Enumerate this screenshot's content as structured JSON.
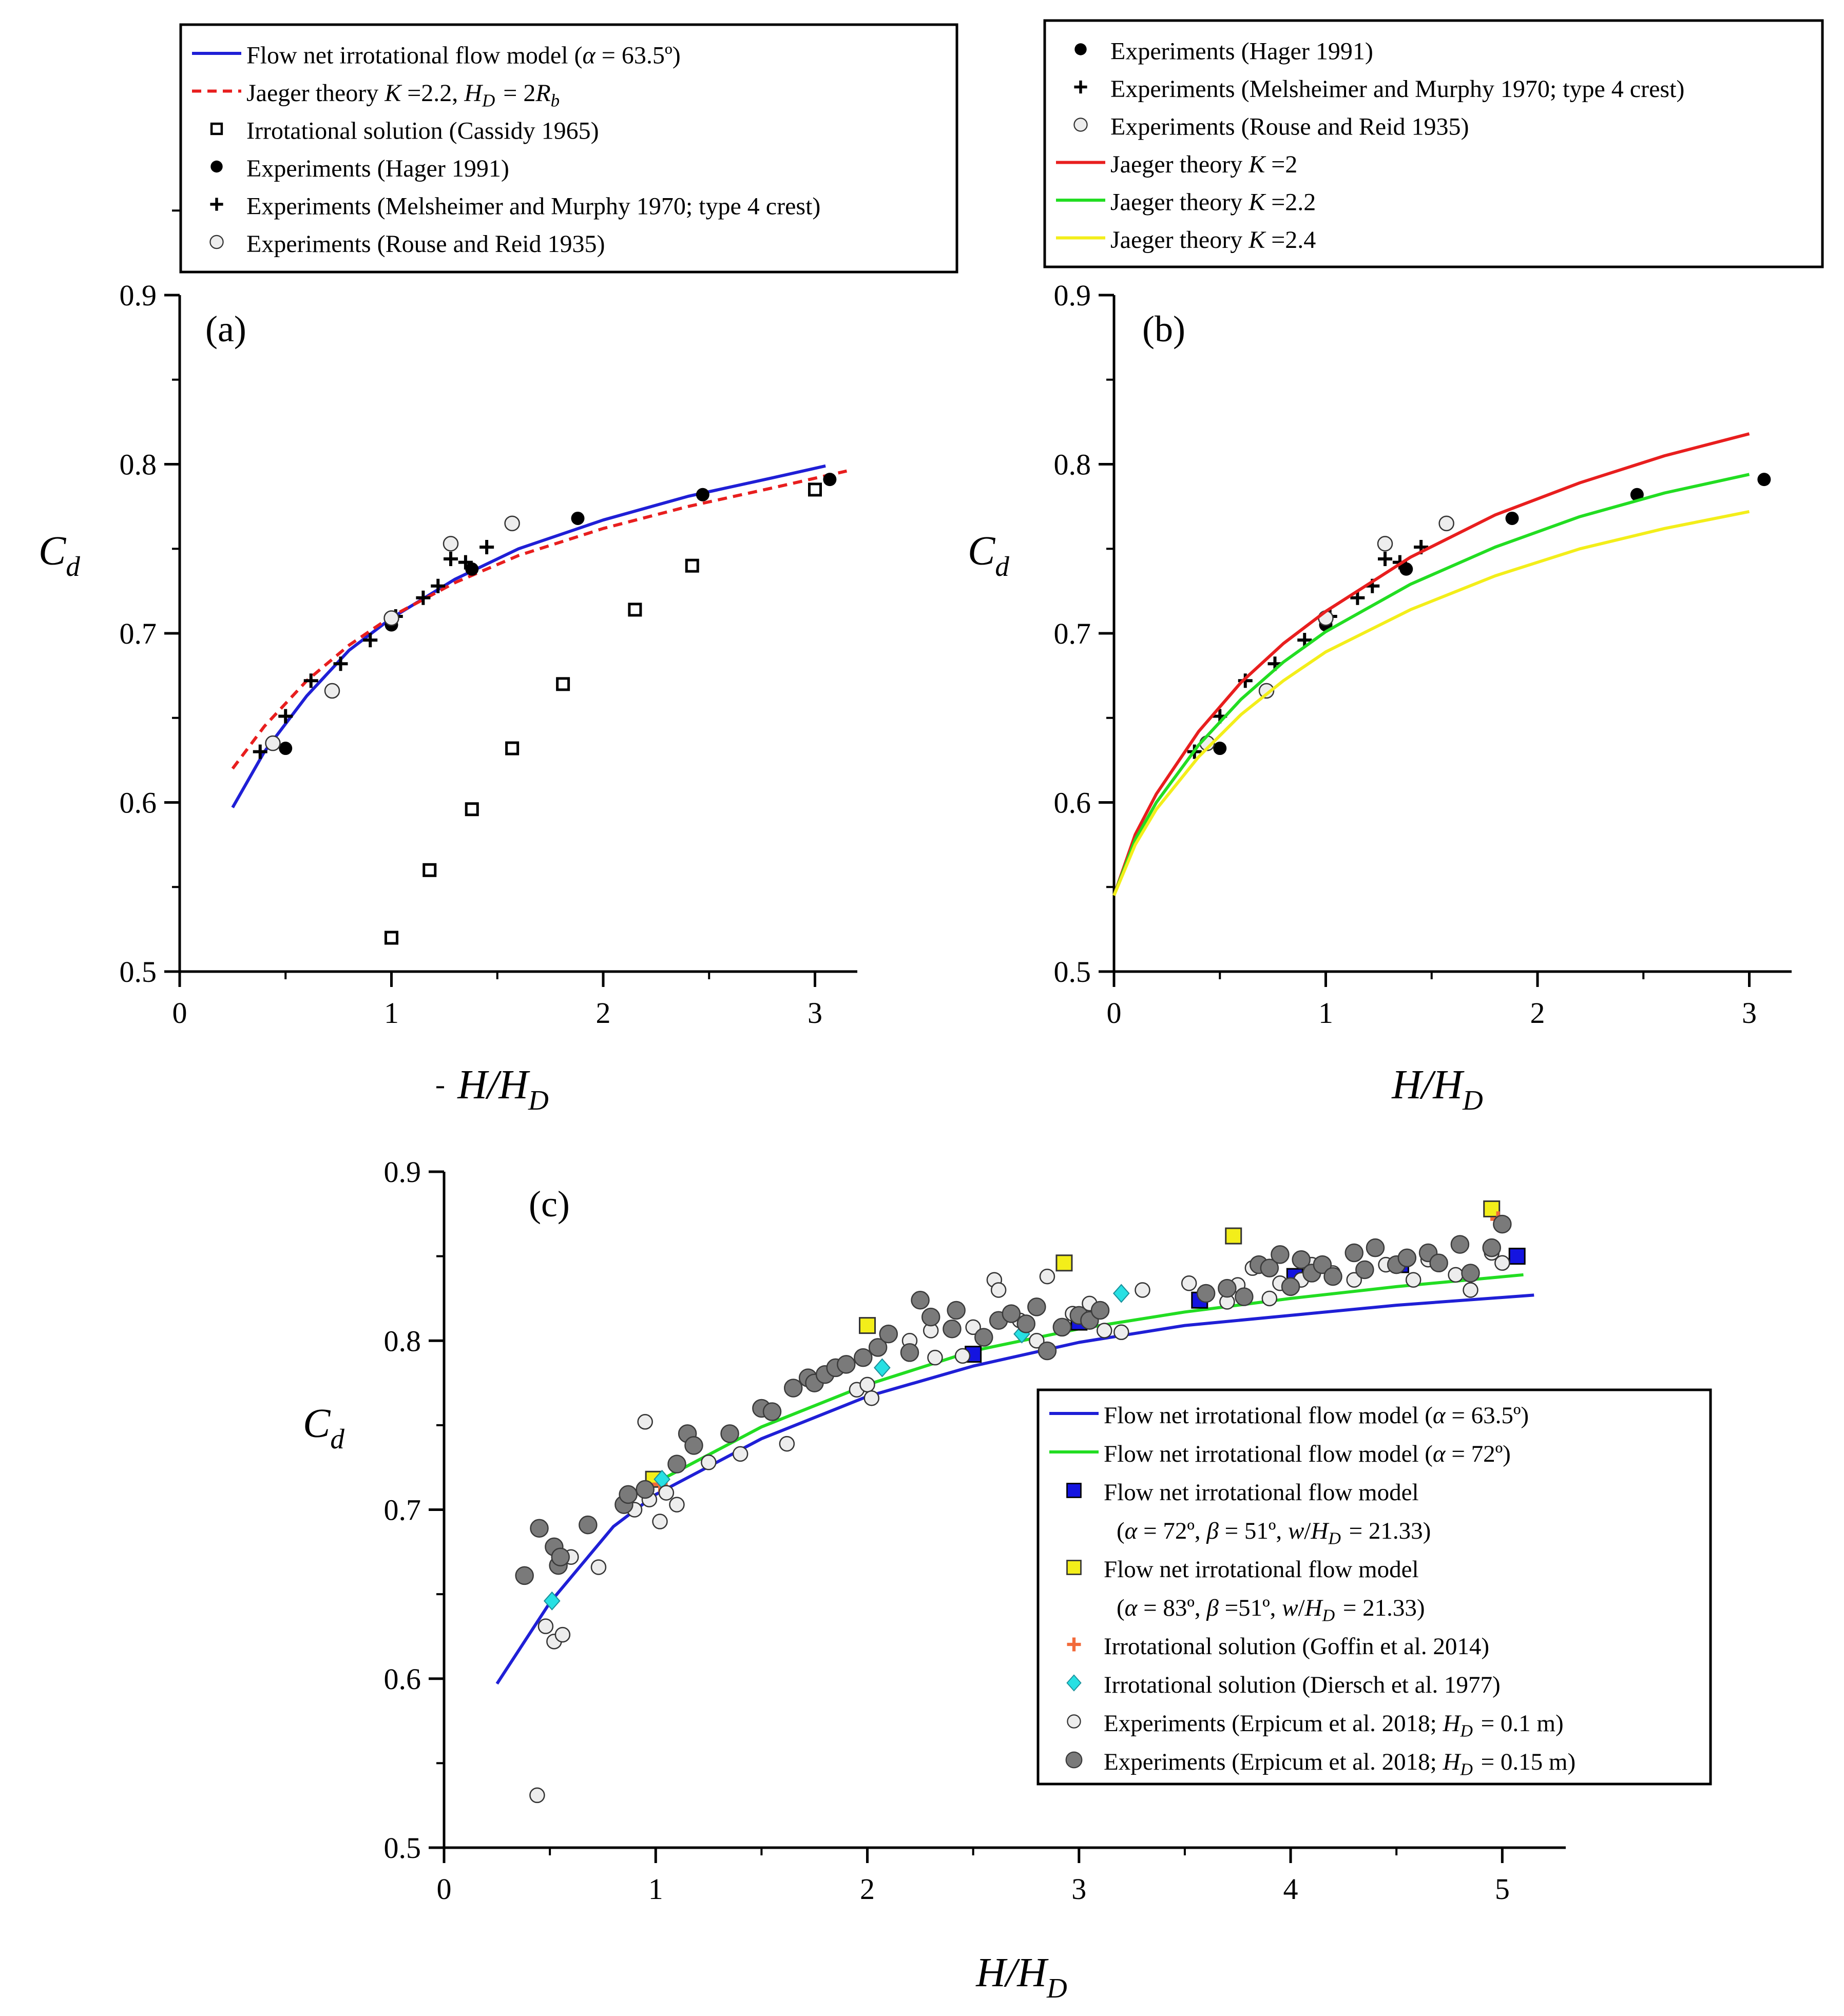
{
  "chart_data": [
    {
      "panel": "a",
      "type": "scatter",
      "panel_label": "(a)",
      "xlabel": "H/H_D",
      "ylabel": "C_d",
      "xlim": [
        0,
        3.2
      ],
      "ylim": [
        0.5,
        0.9
      ],
      "xticks": [
        "0",
        "1",
        "2",
        "3"
      ],
      "yticks": [
        "0.5",
        "0.6",
        "0.7",
        "0.8",
        "0.9"
      ],
      "legend_position": "top",
      "legend": [
        "Flow net irrotational flow model (α = 63.5º)",
        "Jaeger theory K =2.2, H_D = 2R_b",
        "Irrotational solution (Cassidy 1965)",
        "Experiments (Hager 1991)",
        "Experiments (Melsheimer and Murphy 1970; type 4 crest)",
        "Experiments (Rouse and Reid 1935)"
      ],
      "series": [
        {
          "name": "Flow net irrotational flow model (α = 63.5º)",
          "kind": "curve",
          "color": "#1f1fd6",
          "x": [
            0.25,
            0.4,
            0.6,
            0.8,
            1.0,
            1.3,
            1.6,
            2.0,
            2.4,
            2.8,
            3.05
          ],
          "y": [
            0.597,
            0.63,
            0.663,
            0.69,
            0.709,
            0.732,
            0.75,
            0.767,
            0.781,
            0.792,
            0.799
          ]
        },
        {
          "name": "Jaeger theory K =2.2, H_D = 2R_b",
          "kind": "dashed",
          "color": "#e81e1e",
          "x": [
            0.25,
            0.4,
            0.6,
            0.8,
            1.0,
            1.3,
            1.6,
            2.0,
            2.4,
            2.8,
            3.15
          ],
          "y": [
            0.62,
            0.645,
            0.672,
            0.693,
            0.71,
            0.73,
            0.746,
            0.762,
            0.775,
            0.786,
            0.796
          ]
        },
        {
          "name": "Irrotational solution (Cassidy 1965)",
          "kind": "open-square",
          "x": [
            1.0,
            1.18,
            1.38,
            1.57,
            1.81,
            2.15,
            2.42,
            3.0
          ],
          "y": [
            0.52,
            0.56,
            0.596,
            0.632,
            0.67,
            0.714,
            0.74,
            0.785
          ]
        },
        {
          "name": "Experiments (Hager 1991)",
          "kind": "black-dot",
          "x": [
            0.5,
            1.0,
            1.38,
            1.88,
            2.47,
            3.07
          ],
          "y": [
            0.632,
            0.705,
            0.738,
            0.768,
            0.782,
            0.791
          ]
        },
        {
          "name": "Experiments (Melsheimer and Murphy 1970; type 4 crest)",
          "kind": "plus",
          "x": [
            0.38,
            0.5,
            0.62,
            0.76,
            0.9,
            1.02,
            1.15,
            1.22,
            1.28,
            1.35,
            1.45
          ],
          "y": [
            0.63,
            0.651,
            0.672,
            0.682,
            0.696,
            0.71,
            0.721,
            0.728,
            0.744,
            0.742,
            0.751
          ]
        },
        {
          "name": "Experiments (Rouse and Reid 1935)",
          "kind": "open-circle",
          "x": [
            0.44,
            0.72,
            1.0,
            1.28,
            1.57
          ],
          "y": [
            0.635,
            0.666,
            0.709,
            0.753,
            0.765
          ]
        }
      ]
    },
    {
      "panel": "b",
      "type": "scatter",
      "panel_label": "(b)",
      "xlabel": "H/H_D",
      "ylabel": "C_d",
      "xlim": [
        0,
        3.2
      ],
      "ylim": [
        0.5,
        0.9
      ],
      "xticks": [
        "0",
        "1",
        "2",
        "3"
      ],
      "yticks": [
        "0.5",
        "0.6",
        "0.7",
        "0.8",
        "0.9"
      ],
      "legend_position": "top",
      "legend": [
        "Experiments (Hager 1991)",
        "Experiments (Melsheimer and Murphy 1970; type 4 crest)",
        "Experiments (Rouse and Reid 1935)",
        "Jaeger theory K =2",
        "Jaeger theory K =2.2",
        "Jaeger theory K =2.4"
      ],
      "series": [
        {
          "name": "Experiments (Hager 1991)",
          "kind": "black-dot",
          "x": [
            0.5,
            1.0,
            1.38,
            1.88,
            2.47,
            3.07
          ],
          "y": [
            0.632,
            0.705,
            0.738,
            0.768,
            0.782,
            0.791
          ]
        },
        {
          "name": "Experiments (Melsheimer and Murphy 1970; type 4 crest)",
          "kind": "plus",
          "x": [
            0.38,
            0.5,
            0.62,
            0.76,
            0.9,
            1.02,
            1.15,
            1.22,
            1.28,
            1.35,
            1.45
          ],
          "y": [
            0.63,
            0.651,
            0.672,
            0.682,
            0.696,
            0.71,
            0.721,
            0.728,
            0.744,
            0.742,
            0.751
          ]
        },
        {
          "name": "Experiments (Rouse and Reid 1935)",
          "kind": "open-circle",
          "x": [
            0.44,
            0.72,
            1.0,
            1.28,
            1.57
          ],
          "y": [
            0.635,
            0.666,
            0.709,
            0.753,
            0.765
          ]
        },
        {
          "name": "Jaeger theory K =2",
          "kind": "curve",
          "color": "#e81e1e",
          "x": [
            0,
            0.1,
            0.2,
            0.4,
            0.6,
            0.8,
            1.0,
            1.4,
            1.8,
            2.2,
            2.6,
            3.0
          ],
          "y": [
            0.545,
            0.581,
            0.605,
            0.642,
            0.671,
            0.694,
            0.713,
            0.745,
            0.77,
            0.789,
            0.805,
            0.818
          ]
        },
        {
          "name": "Jaeger theory K =2.2",
          "kind": "curve",
          "color": "#22dd22",
          "x": [
            0,
            0.1,
            0.2,
            0.4,
            0.6,
            0.8,
            1.0,
            1.4,
            1.8,
            2.2,
            2.6,
            3.0
          ],
          "y": [
            0.545,
            0.578,
            0.6,
            0.634,
            0.661,
            0.683,
            0.701,
            0.729,
            0.751,
            0.769,
            0.783,
            0.794
          ]
        },
        {
          "name": "Jaeger theory K =2.4",
          "kind": "curve",
          "color": "#f3ee1a",
          "x": [
            0,
            0.1,
            0.2,
            0.4,
            0.6,
            0.8,
            1.0,
            1.4,
            1.8,
            2.2,
            2.6,
            3.0
          ],
          "y": [
            0.545,
            0.575,
            0.596,
            0.627,
            0.652,
            0.672,
            0.689,
            0.714,
            0.734,
            0.75,
            0.762,
            0.772
          ]
        }
      ]
    },
    {
      "panel": "c",
      "type": "scatter",
      "panel_label": "(c)",
      "xlabel": "H/H_D",
      "ylabel": "C_d",
      "xlim": [
        0,
        5.3
      ],
      "ylim": [
        0.5,
        0.9
      ],
      "xticks": [
        "0",
        "1",
        "2",
        "3",
        "4",
        "5"
      ],
      "yticks": [
        "0.5",
        "0.6",
        "0.7",
        "0.8",
        "0.9"
      ],
      "legend_position": "lower-right",
      "legend": [
        "Flow net irrotational flow model (α = 63.5º)",
        "Flow net irrotational flow model (α = 72º)",
        "Flow net irrotational flow model",
        "(α = 72º, β = 51º, w/H_D = 21.33)",
        "Flow net irrotational flow model",
        "(α = 83º, β =51º, w/H_D = 21.33)",
        "Irrotational solution (Goffin et al. 2014)",
        "Irrotational solution (Diersch et al. 1977)",
        "Experiments (Erpicum et al. 2018; H_D = 0.1 m)",
        "Experiments (Erpicum et al. 2018; H_D = 0.15 m)"
      ],
      "series": [
        {
          "name": "Flow net irrotational flow model (α = 63.5º)",
          "kind": "curve",
          "color": "#1f1fd6",
          "x": [
            0.25,
            0.5,
            0.8,
            1.0,
            1.5,
            2.0,
            2.5,
            3.0,
            3.5,
            4.0,
            4.5,
            5.15
          ],
          "y": [
            0.597,
            0.645,
            0.69,
            0.709,
            0.742,
            0.767,
            0.785,
            0.799,
            0.809,
            0.815,
            0.821,
            0.827
          ]
        },
        {
          "name": "Flow net irrotational flow model (α = 72º)",
          "kind": "curve",
          "color": "#22dd22",
          "x": [
            1.0,
            1.5,
            2.0,
            2.5,
            3.0,
            3.5,
            4.0,
            4.5,
            5.1
          ],
          "y": [
            0.716,
            0.749,
            0.774,
            0.794,
            0.807,
            0.817,
            0.825,
            0.832,
            0.839
          ]
        },
        {
          "name": "Flow net irrotational flow model (α = 72º, β = 51º, w/H_D = 21.33)",
          "kind": "blue-square",
          "x": [
            2.5,
            3.0,
            3.57,
            4.02,
            4.52,
            5.07
          ],
          "y": [
            0.792,
            0.811,
            0.824,
            0.838,
            0.845,
            0.85
          ]
        },
        {
          "name": "Flow net irrotational flow model (α = 83º, β =51º, w/H_D = 21.33)",
          "kind": "yellow-square",
          "x": [
            0.99,
            2.0,
            2.93,
            3.73,
            4.95
          ],
          "y": [
            0.718,
            0.809,
            0.846,
            0.862,
            0.878
          ]
        },
        {
          "name": "Irrotational solution (Goffin et al. 2014)",
          "kind": "orange-plus",
          "x": [
            1.02,
            4.98
          ],
          "y": [
            0.715,
            0.872
          ]
        },
        {
          "name": "Irrotational solution (Diersch et al. 1977)",
          "kind": "cyan-diamond",
          "x": [
            0.51,
            1.03,
            1.54,
            2.07,
            2.73,
            3.2
          ],
          "y": [
            0.646,
            0.718,
            0.758,
            0.784,
            0.804,
            0.828
          ]
        },
        {
          "name": "Experiments (Erpicum et al. 2018; H_D = 0.1 m)",
          "kind": "open-circle",
          "x": [
            0.44,
            0.48,
            0.52,
            0.56,
            0.6,
            0.73,
            0.9,
            0.95,
            0.97,
            1.02,
            1.05,
            1.1,
            1.25,
            1.4,
            1.62,
            1.95,
            2.0,
            2.02,
            2.2,
            2.3,
            2.32,
            2.45,
            2.5,
            2.6,
            2.62,
            2.72,
            2.8,
            2.85,
            2.97,
            3.05,
            3.12,
            3.2,
            3.3,
            3.52,
            3.7,
            3.75,
            3.82,
            3.9,
            3.95,
            4.05,
            4.1,
            4.2,
            4.3,
            4.45,
            4.58,
            4.65,
            4.78,
            4.85,
            4.95,
            5.0
          ],
          "y": [
            0.531,
            0.631,
            0.622,
            0.626,
            0.672,
            0.666,
            0.7,
            0.752,
            0.706,
            0.693,
            0.71,
            0.703,
            0.728,
            0.733,
            0.739,
            0.771,
            0.774,
            0.766,
            0.8,
            0.806,
            0.79,
            0.791,
            0.808,
            0.836,
            0.83,
            0.812,
            0.8,
            0.838,
            0.816,
            0.822,
            0.806,
            0.805,
            0.83,
            0.834,
            0.823,
            0.833,
            0.843,
            0.825,
            0.834,
            0.836,
            0.845,
            0.84,
            0.836,
            0.845,
            0.836,
            0.848,
            0.839,
            0.83,
            0.852,
            0.846
          ]
        },
        {
          "name": "Experiments (Erpicum et al. 2018; H_D = 0.15 m)",
          "kind": "grey-dot",
          "x": [
            0.38,
            0.45,
            0.52,
            0.54,
            0.55,
            0.68,
            0.85,
            0.87,
            0.95,
            1.1,
            1.15,
            1.18,
            1.35,
            1.5,
            1.55,
            1.65,
            1.72,
            1.75,
            1.8,
            1.85,
            1.9,
            1.98,
            2.05,
            2.1,
            2.2,
            2.25,
            2.3,
            2.4,
            2.42,
            2.55,
            2.62,
            2.68,
            2.75,
            2.8,
            2.85,
            2.92,
            3.0,
            3.05,
            3.1,
            3.6,
            3.7,
            3.78,
            3.85,
            3.9,
            3.95,
            4.0,
            4.05,
            4.1,
            4.15,
            4.2,
            4.3,
            4.35,
            4.4,
            4.5,
            4.55,
            4.65,
            4.7,
            4.8,
            4.85,
            4.95,
            5.0
          ],
          "y": [
            0.661,
            0.689,
            0.678,
            0.667,
            0.672,
            0.691,
            0.703,
            0.709,
            0.712,
            0.727,
            0.745,
            0.738,
            0.745,
            0.76,
            0.758,
            0.772,
            0.778,
            0.775,
            0.78,
            0.784,
            0.786,
            0.79,
            0.796,
            0.804,
            0.793,
            0.824,
            0.814,
            0.807,
            0.818,
            0.802,
            0.812,
            0.816,
            0.81,
            0.82,
            0.794,
            0.808,
            0.815,
            0.812,
            0.818,
            0.828,
            0.831,
            0.826,
            0.845,
            0.843,
            0.851,
            0.832,
            0.848,
            0.84,
            0.845,
            0.838,
            0.852,
            0.842,
            0.855,
            0.845,
            0.849,
            0.852,
            0.846,
            0.857,
            0.84,
            0.855,
            0.869
          ]
        }
      ]
    }
  ]
}
